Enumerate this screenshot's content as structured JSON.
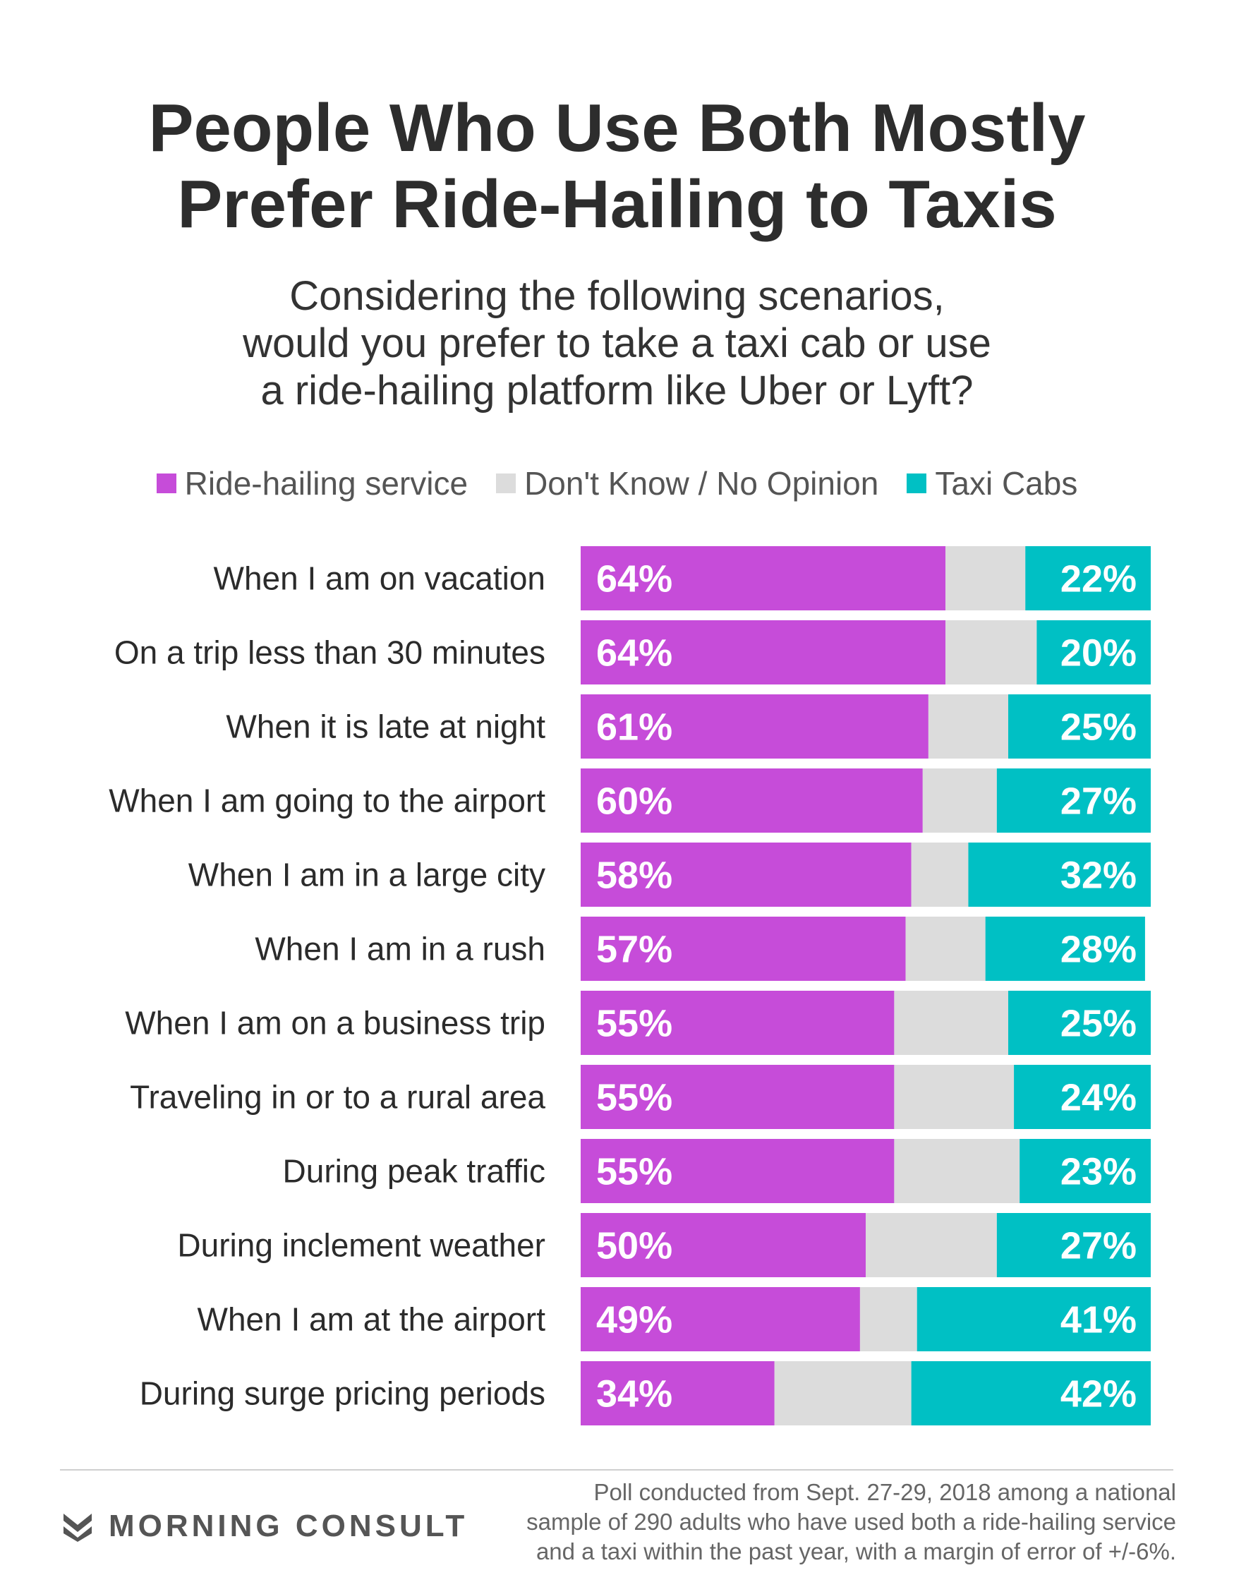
{
  "title_lines": [
    "People Who Use Both Mostly",
    "Prefer Ride-Hailing to Taxis"
  ],
  "subtitle_lines": [
    "Considering the following scenarios,",
    "would you prefer to take a taxi cab or use",
    "a ride-hailing platform like Uber or Lyft?"
  ],
  "colors": {
    "ride": "#c64cd9",
    "dk": "#dcdcdc",
    "taxi": "#00c0c4"
  },
  "chart_data": {
    "type": "bar",
    "orientation": "horizontal",
    "stacked": true,
    "categories": [
      "When I am on vacation",
      "On a trip less than 30 minutes",
      "When it is late at night",
      "When I am going to the airport",
      "When I am in a large city",
      "When I am in a rush",
      "When I am on a business trip",
      "Traveling in or to a rural area",
      "During peak traffic",
      "During inclement weather",
      "When I am at the airport",
      "During surge pricing periods"
    ],
    "series": [
      {
        "name": "Ride-hailing service",
        "values": [
          64,
          64,
          61,
          60,
          58,
          57,
          55,
          55,
          55,
          50,
          49,
          34
        ]
      },
      {
        "name": "Don't Know / No Opinion",
        "values": [
          14,
          16,
          14,
          13,
          10,
          14,
          20,
          21,
          22,
          23,
          10,
          24
        ]
      },
      {
        "name": "Taxi Cabs",
        "values": [
          22,
          20,
          25,
          27,
          32,
          28,
          25,
          24,
          23,
          27,
          41,
          42
        ]
      }
    ],
    "data_labels": {
      "ride": [
        "64%",
        "64%",
        "61%",
        "60%",
        "58%",
        "57%",
        "55%",
        "55%",
        "55%",
        "50%",
        "49%",
        "34%"
      ],
      "taxi": [
        "22%",
        "20%",
        "25%",
        "27%",
        "32%",
        "28%",
        "25%",
        "24%",
        "23%",
        "27%",
        "41%",
        "42%"
      ]
    },
    "xlim": [
      0,
      100
    ],
    "legend_position": "top-center",
    "grid": false
  },
  "footer": {
    "brand": "MORNING CONSULT",
    "note_lines": [
      "Poll conducted from Sept. 27-29, 2018 among a national",
      "sample of 290 adults who have used both a ride-hailing service",
      "and a taxi within the past year, with a margin of error of +/-6%."
    ]
  }
}
